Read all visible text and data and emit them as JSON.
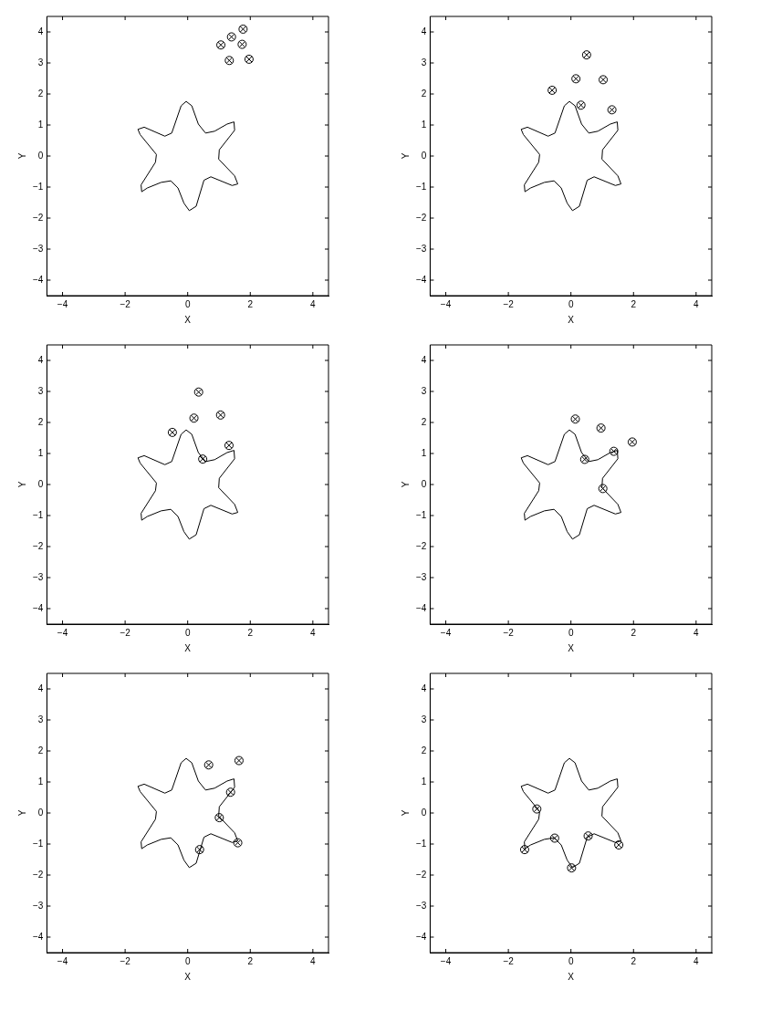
{
  "chart_data": [
    {
      "type": "scatter",
      "xlabel": "X",
      "ylabel": "Y",
      "xlim": [
        -4.5,
        4.5
      ],
      "ylim": [
        -4.5,
        4.5
      ],
      "xticks": [
        -4,
        -2,
        0,
        2,
        4
      ],
      "yticks": [
        -4,
        -3,
        -2,
        -1,
        0,
        1,
        2,
        3,
        4
      ],
      "grid": false,
      "legend": false,
      "series": [
        {
          "type": "line",
          "color": "#000000",
          "marker": "none",
          "x": [
            -0.05,
            0.13,
            0.34,
            0.57,
            0.86,
            1.26,
            1.48,
            1.5
          ],
          "values": [
            1.76,
            1.62,
            1.03,
            0.74,
            0.8,
            1.03,
            1.1,
            0.83
          ]
        },
        {
          "type": "line",
          "color": "#000000",
          "marker": "none",
          "x": [
            1.5,
            1.01,
            0.99
          ],
          "values": [
            0.83,
            0.2,
            -0.1
          ]
        },
        {
          "type": "line",
          "color": "#000000",
          "marker": "none",
          "x": [
            0.99,
            1.5,
            1.6
          ],
          "values": [
            -0.1,
            -0.64,
            -0.9
          ]
        },
        {
          "type": "line",
          "color": "#000000",
          "marker": "none",
          "x": [
            1.6,
            1.42,
            0.74,
            0.52,
            0.27,
            0.05,
            -0.12,
            -0.31,
            -0.54,
            -0.85,
            -1.29,
            -1.47,
            -1.49
          ],
          "values": [
            -0.9,
            -0.95,
            -0.67,
            -0.78,
            -1.62,
            -1.76,
            -1.52,
            -1.03,
            -0.8,
            -0.85,
            -1.03,
            -1.15,
            -0.93
          ]
        },
        {
          "type": "line",
          "color": "#000000",
          "marker": "none",
          "x": [
            -1.49,
            -1.03,
            -1.0
          ],
          "values": [
            -0.93,
            -0.2,
            0.05
          ]
        },
        {
          "type": "line",
          "color": "#000000",
          "marker": "none",
          "x": [
            -1.0,
            -1.52,
            -1.59
          ],
          "values": [
            0.05,
            0.69,
            0.86
          ]
        },
        {
          "type": "line",
          "color": "#000000",
          "marker": "none",
          "x": [
            -1.59,
            -1.39,
            -0.73,
            -0.51,
            -0.21,
            -0.05
          ],
          "values": [
            0.86,
            0.93,
            0.64,
            0.74,
            1.62,
            1.76
          ]
        },
        {
          "type": "scatter",
          "color": "#000000",
          "marker": "circle",
          "x": [
            1.77,
            1.4,
            1.06,
            1.74,
            1.33,
            1.96
          ],
          "values": [
            4.09,
            3.84,
            3.58,
            3.6,
            3.08,
            3.12
          ]
        }
      ]
    },
    {
      "type": "scatter",
      "xlabel": "X",
      "ylabel": "Y",
      "xlim": [
        -4.5,
        4.5
      ],
      "ylim": [
        -4.5,
        4.5
      ],
      "xticks": [
        -4,
        -2,
        0,
        2,
        4
      ],
      "yticks": [
        -4,
        -3,
        -2,
        -1,
        0,
        1,
        2,
        3,
        4
      ],
      "grid": false,
      "legend": false,
      "series": [
        {
          "type": "line",
          "color": "#000000",
          "marker": "none",
          "x": [
            -0.05,
            0.13,
            0.34,
            0.57,
            0.86,
            1.26,
            1.48,
            1.5
          ],
          "values": [
            1.76,
            1.62,
            1.03,
            0.74,
            0.8,
            1.03,
            1.1,
            0.83
          ]
        },
        {
          "type": "line",
          "color": "#000000",
          "marker": "none",
          "x": [
            1.5,
            1.01,
            0.99
          ],
          "values": [
            0.83,
            0.2,
            -0.1
          ]
        },
        {
          "type": "line",
          "color": "#000000",
          "marker": "none",
          "x": [
            0.99,
            1.5,
            1.6
          ],
          "values": [
            -0.1,
            -0.64,
            -0.9
          ]
        },
        {
          "type": "line",
          "color": "#000000",
          "marker": "none",
          "x": [
            1.6,
            1.42,
            0.74,
            0.52,
            0.27,
            0.05,
            -0.12,
            -0.31,
            -0.54,
            -0.85,
            -1.29,
            -1.47,
            -1.49
          ],
          "values": [
            -0.9,
            -0.95,
            -0.67,
            -0.78,
            -1.62,
            -1.76,
            -1.52,
            -1.03,
            -0.8,
            -0.85,
            -1.03,
            -1.15,
            -0.93
          ]
        },
        {
          "type": "line",
          "color": "#000000",
          "marker": "none",
          "x": [
            -1.49,
            -1.03,
            -1.0
          ],
          "values": [
            -0.93,
            -0.2,
            0.05
          ]
        },
        {
          "type": "line",
          "color": "#000000",
          "marker": "none",
          "x": [
            -1.0,
            -1.52,
            -1.59
          ],
          "values": [
            0.05,
            0.69,
            0.86
          ]
        },
        {
          "type": "line",
          "color": "#000000",
          "marker": "none",
          "x": [
            -1.59,
            -1.39,
            -0.73,
            -0.51,
            -0.21,
            -0.05
          ],
          "values": [
            0.86,
            0.93,
            0.64,
            0.74,
            1.62,
            1.76
          ]
        },
        {
          "type": "scatter",
          "color": "#000000",
          "marker": "circle",
          "x": [
            0.5,
            0.16,
            1.03,
            -0.6,
            0.32,
            1.31
          ],
          "values": [
            3.26,
            2.49,
            2.46,
            2.12,
            1.64,
            1.49
          ]
        }
      ]
    },
    {
      "type": "scatter",
      "xlabel": "X",
      "ylabel": "Y",
      "xlim": [
        -4.5,
        4.5
      ],
      "ylim": [
        -4.5,
        4.5
      ],
      "xticks": [
        -4,
        -2,
        0,
        2,
        4
      ],
      "yticks": [
        -4,
        -3,
        -2,
        -1,
        0,
        1,
        2,
        3,
        4
      ],
      "grid": false,
      "legend": false,
      "series": [
        {
          "type": "line",
          "color": "#000000",
          "marker": "none",
          "x": [
            -0.05,
            0.13,
            0.34,
            0.57,
            0.86,
            1.26,
            1.48,
            1.5
          ],
          "values": [
            1.76,
            1.62,
            1.03,
            0.74,
            0.8,
            1.03,
            1.1,
            0.83
          ]
        },
        {
          "type": "line",
          "color": "#000000",
          "marker": "none",
          "x": [
            1.5,
            1.01,
            0.99
          ],
          "values": [
            0.83,
            0.2,
            -0.1
          ]
        },
        {
          "type": "line",
          "color": "#000000",
          "marker": "none",
          "x": [
            0.99,
            1.5,
            1.6
          ],
          "values": [
            -0.1,
            -0.64,
            -0.9
          ]
        },
        {
          "type": "line",
          "color": "#000000",
          "marker": "none",
          "x": [
            1.6,
            1.42,
            0.74,
            0.52,
            0.27,
            0.05,
            -0.12,
            -0.31,
            -0.54,
            -0.85,
            -1.29,
            -1.47,
            -1.49
          ],
          "values": [
            -0.9,
            -0.95,
            -0.67,
            -0.78,
            -1.62,
            -1.76,
            -1.52,
            -1.03,
            -0.8,
            -0.85,
            -1.03,
            -1.15,
            -0.93
          ]
        },
        {
          "type": "line",
          "color": "#000000",
          "marker": "none",
          "x": [
            -1.49,
            -1.03,
            -1.0
          ],
          "values": [
            -0.93,
            -0.2,
            0.05
          ]
        },
        {
          "type": "line",
          "color": "#000000",
          "marker": "none",
          "x": [
            -1.0,
            -1.52,
            -1.59
          ],
          "values": [
            0.05,
            0.69,
            0.86
          ]
        },
        {
          "type": "line",
          "color": "#000000",
          "marker": "none",
          "x": [
            -1.59,
            -1.39,
            -0.73,
            -0.51,
            -0.21,
            -0.05
          ],
          "values": [
            0.86,
            0.93,
            0.64,
            0.74,
            1.62,
            1.76
          ]
        },
        {
          "type": "scatter",
          "color": "#000000",
          "marker": "circle",
          "x": [
            0.35,
            0.2,
            1.05,
            -0.49,
            1.32,
            0.48
          ],
          "values": [
            2.98,
            2.14,
            2.24,
            1.68,
            1.26,
            0.82
          ]
        }
      ]
    },
    {
      "type": "scatter",
      "xlabel": "X",
      "ylabel": "Y",
      "xlim": [
        -4.5,
        4.5
      ],
      "ylim": [
        -4.5,
        4.5
      ],
      "xticks": [
        -4,
        -2,
        0,
        2,
        4
      ],
      "yticks": [
        -4,
        -3,
        -2,
        -1,
        0,
        1,
        2,
        3,
        4
      ],
      "grid": false,
      "legend": false,
      "series": [
        {
          "type": "line",
          "color": "#000000",
          "marker": "none",
          "x": [
            -0.05,
            0.13,
            0.34,
            0.57,
            0.86,
            1.26,
            1.48,
            1.5
          ],
          "values": [
            1.76,
            1.62,
            1.03,
            0.74,
            0.8,
            1.03,
            1.1,
            0.83
          ]
        },
        {
          "type": "line",
          "color": "#000000",
          "marker": "none",
          "x": [
            1.5,
            1.01,
            0.99
          ],
          "values": [
            0.83,
            0.2,
            -0.1
          ]
        },
        {
          "type": "line",
          "color": "#000000",
          "marker": "none",
          "x": [
            0.99,
            1.5,
            1.6
          ],
          "values": [
            -0.1,
            -0.64,
            -0.9
          ]
        },
        {
          "type": "line",
          "color": "#000000",
          "marker": "none",
          "x": [
            1.6,
            1.42,
            0.74,
            0.52,
            0.27,
            0.05,
            -0.12,
            -0.31,
            -0.54,
            -0.85,
            -1.29,
            -1.47,
            -1.49
          ],
          "values": [
            -0.9,
            -0.95,
            -0.67,
            -0.78,
            -1.62,
            -1.76,
            -1.52,
            -1.03,
            -0.8,
            -0.85,
            -1.03,
            -1.15,
            -0.93
          ]
        },
        {
          "type": "line",
          "color": "#000000",
          "marker": "none",
          "x": [
            -1.49,
            -1.03,
            -1.0
          ],
          "values": [
            -0.93,
            -0.2,
            0.05
          ]
        },
        {
          "type": "line",
          "color": "#000000",
          "marker": "none",
          "x": [
            -1.0,
            -1.52,
            -1.59
          ],
          "values": [
            0.05,
            0.69,
            0.86
          ]
        },
        {
          "type": "line",
          "color": "#000000",
          "marker": "none",
          "x": [
            -1.59,
            -1.39,
            -0.73,
            -0.51,
            -0.21,
            -0.05
          ],
          "values": [
            0.86,
            0.93,
            0.64,
            0.74,
            1.62,
            1.76
          ]
        },
        {
          "type": "scatter",
          "color": "#000000",
          "marker": "circle",
          "x": [
            0.14,
            0.96,
            1.96,
            1.37,
            0.44,
            1.02
          ],
          "values": [
            2.11,
            1.82,
            1.37,
            1.07,
            0.81,
            -0.13
          ]
        }
      ]
    },
    {
      "type": "scatter",
      "xlabel": "X",
      "ylabel": "Y",
      "xlim": [
        -4.5,
        4.5
      ],
      "ylim": [
        -4.5,
        4.5
      ],
      "xticks": [
        -4,
        -2,
        0,
        2,
        4
      ],
      "yticks": [
        -4,
        -3,
        -2,
        -1,
        0,
        1,
        2,
        3,
        4
      ],
      "grid": false,
      "legend": false,
      "series": [
        {
          "type": "line",
          "color": "#000000",
          "marker": "none",
          "x": [
            -0.05,
            0.13,
            0.34,
            0.57,
            0.86,
            1.26,
            1.48,
            1.5
          ],
          "values": [
            1.76,
            1.62,
            1.03,
            0.74,
            0.8,
            1.03,
            1.1,
            0.83
          ]
        },
        {
          "type": "line",
          "color": "#000000",
          "marker": "none",
          "x": [
            1.5,
            1.01,
            0.99
          ],
          "values": [
            0.83,
            0.2,
            -0.1
          ]
        },
        {
          "type": "line",
          "color": "#000000",
          "marker": "none",
          "x": [
            0.99,
            1.5,
            1.6
          ],
          "values": [
            -0.1,
            -0.64,
            -0.9
          ]
        },
        {
          "type": "line",
          "color": "#000000",
          "marker": "none",
          "x": [
            1.6,
            1.42,
            0.74,
            0.52,
            0.27,
            0.05,
            -0.12,
            -0.31,
            -0.54,
            -0.85,
            -1.29,
            -1.47,
            -1.49
          ],
          "values": [
            -0.9,
            -0.95,
            -0.67,
            -0.78,
            -1.62,
            -1.76,
            -1.52,
            -1.03,
            -0.8,
            -0.85,
            -1.03,
            -1.15,
            -0.93
          ]
        },
        {
          "type": "line",
          "color": "#000000",
          "marker": "none",
          "x": [
            -1.49,
            -1.03,
            -1.0
          ],
          "values": [
            -0.93,
            -0.2,
            0.05
          ]
        },
        {
          "type": "line",
          "color": "#000000",
          "marker": "none",
          "x": [
            -1.0,
            -1.52,
            -1.59
          ],
          "values": [
            0.05,
            0.69,
            0.86
          ]
        },
        {
          "type": "line",
          "color": "#000000",
          "marker": "none",
          "x": [
            -1.59,
            -1.39,
            -0.73,
            -0.51,
            -0.21,
            -0.05
          ],
          "values": [
            0.86,
            0.93,
            0.64,
            0.74,
            1.62,
            1.76
          ]
        },
        {
          "type": "scatter",
          "color": "#000000",
          "marker": "circle",
          "x": [
            0.67,
            1.64,
            1.37,
            1.01,
            1.6,
            0.38
          ],
          "values": [
            1.55,
            1.69,
            0.67,
            -0.15,
            -0.96,
            -1.18
          ]
        }
      ]
    },
    {
      "type": "scatter",
      "xlabel": "X",
      "ylabel": "Y",
      "xlim": [
        -4.5,
        4.5
      ],
      "ylim": [
        -4.5,
        4.5
      ],
      "xticks": [
        -4,
        -2,
        0,
        2,
        4
      ],
      "yticks": [
        -4,
        -3,
        -2,
        -1,
        0,
        1,
        2,
        3,
        4
      ],
      "grid": false,
      "legend": false,
      "series": [
        {
          "type": "line",
          "color": "#000000",
          "marker": "none",
          "x": [
            -0.05,
            0.13,
            0.34,
            0.57,
            0.86,
            1.26,
            1.48,
            1.5
          ],
          "values": [
            1.76,
            1.62,
            1.03,
            0.74,
            0.8,
            1.03,
            1.1,
            0.83
          ]
        },
        {
          "type": "line",
          "color": "#000000",
          "marker": "none",
          "x": [
            1.5,
            1.01,
            0.99
          ],
          "values": [
            0.83,
            0.2,
            -0.1
          ]
        },
        {
          "type": "line",
          "color": "#000000",
          "marker": "none",
          "x": [
            0.99,
            1.5,
            1.6
          ],
          "values": [
            -0.1,
            -0.64,
            -0.9
          ]
        },
        {
          "type": "line",
          "color": "#000000",
          "marker": "none",
          "x": [
            1.6,
            1.42,
            0.74,
            0.52,
            0.27,
            0.05,
            -0.12,
            -0.31,
            -0.54,
            -0.85,
            -1.29,
            -1.47,
            -1.49
          ],
          "values": [
            -0.9,
            -0.95,
            -0.67,
            -0.78,
            -1.62,
            -1.76,
            -1.52,
            -1.03,
            -0.8,
            -0.85,
            -1.03,
            -1.15,
            -0.93
          ]
        },
        {
          "type": "line",
          "color": "#000000",
          "marker": "none",
          "x": [
            -1.49,
            -1.03,
            -1.0
          ],
          "values": [
            -0.93,
            -0.2,
            0.05
          ]
        },
        {
          "type": "line",
          "color": "#000000",
          "marker": "none",
          "x": [
            -1.0,
            -1.52,
            -1.59
          ],
          "values": [
            0.05,
            0.69,
            0.86
          ]
        },
        {
          "type": "line",
          "color": "#000000",
          "marker": "none",
          "x": [
            -1.59,
            -1.39,
            -0.73,
            -0.51,
            -0.21,
            -0.05
          ],
          "values": [
            0.86,
            0.93,
            0.64,
            0.74,
            1.62,
            1.76
          ]
        },
        {
          "type": "scatter",
          "color": "#000000",
          "marker": "circle",
          "x": [
            -1.09,
            -1.48,
            -0.52,
            0.02,
            0.55,
            1.53
          ],
          "values": [
            0.13,
            -1.18,
            -0.81,
            -1.77,
            -0.74,
            -1.03
          ]
        }
      ]
    }
  ]
}
